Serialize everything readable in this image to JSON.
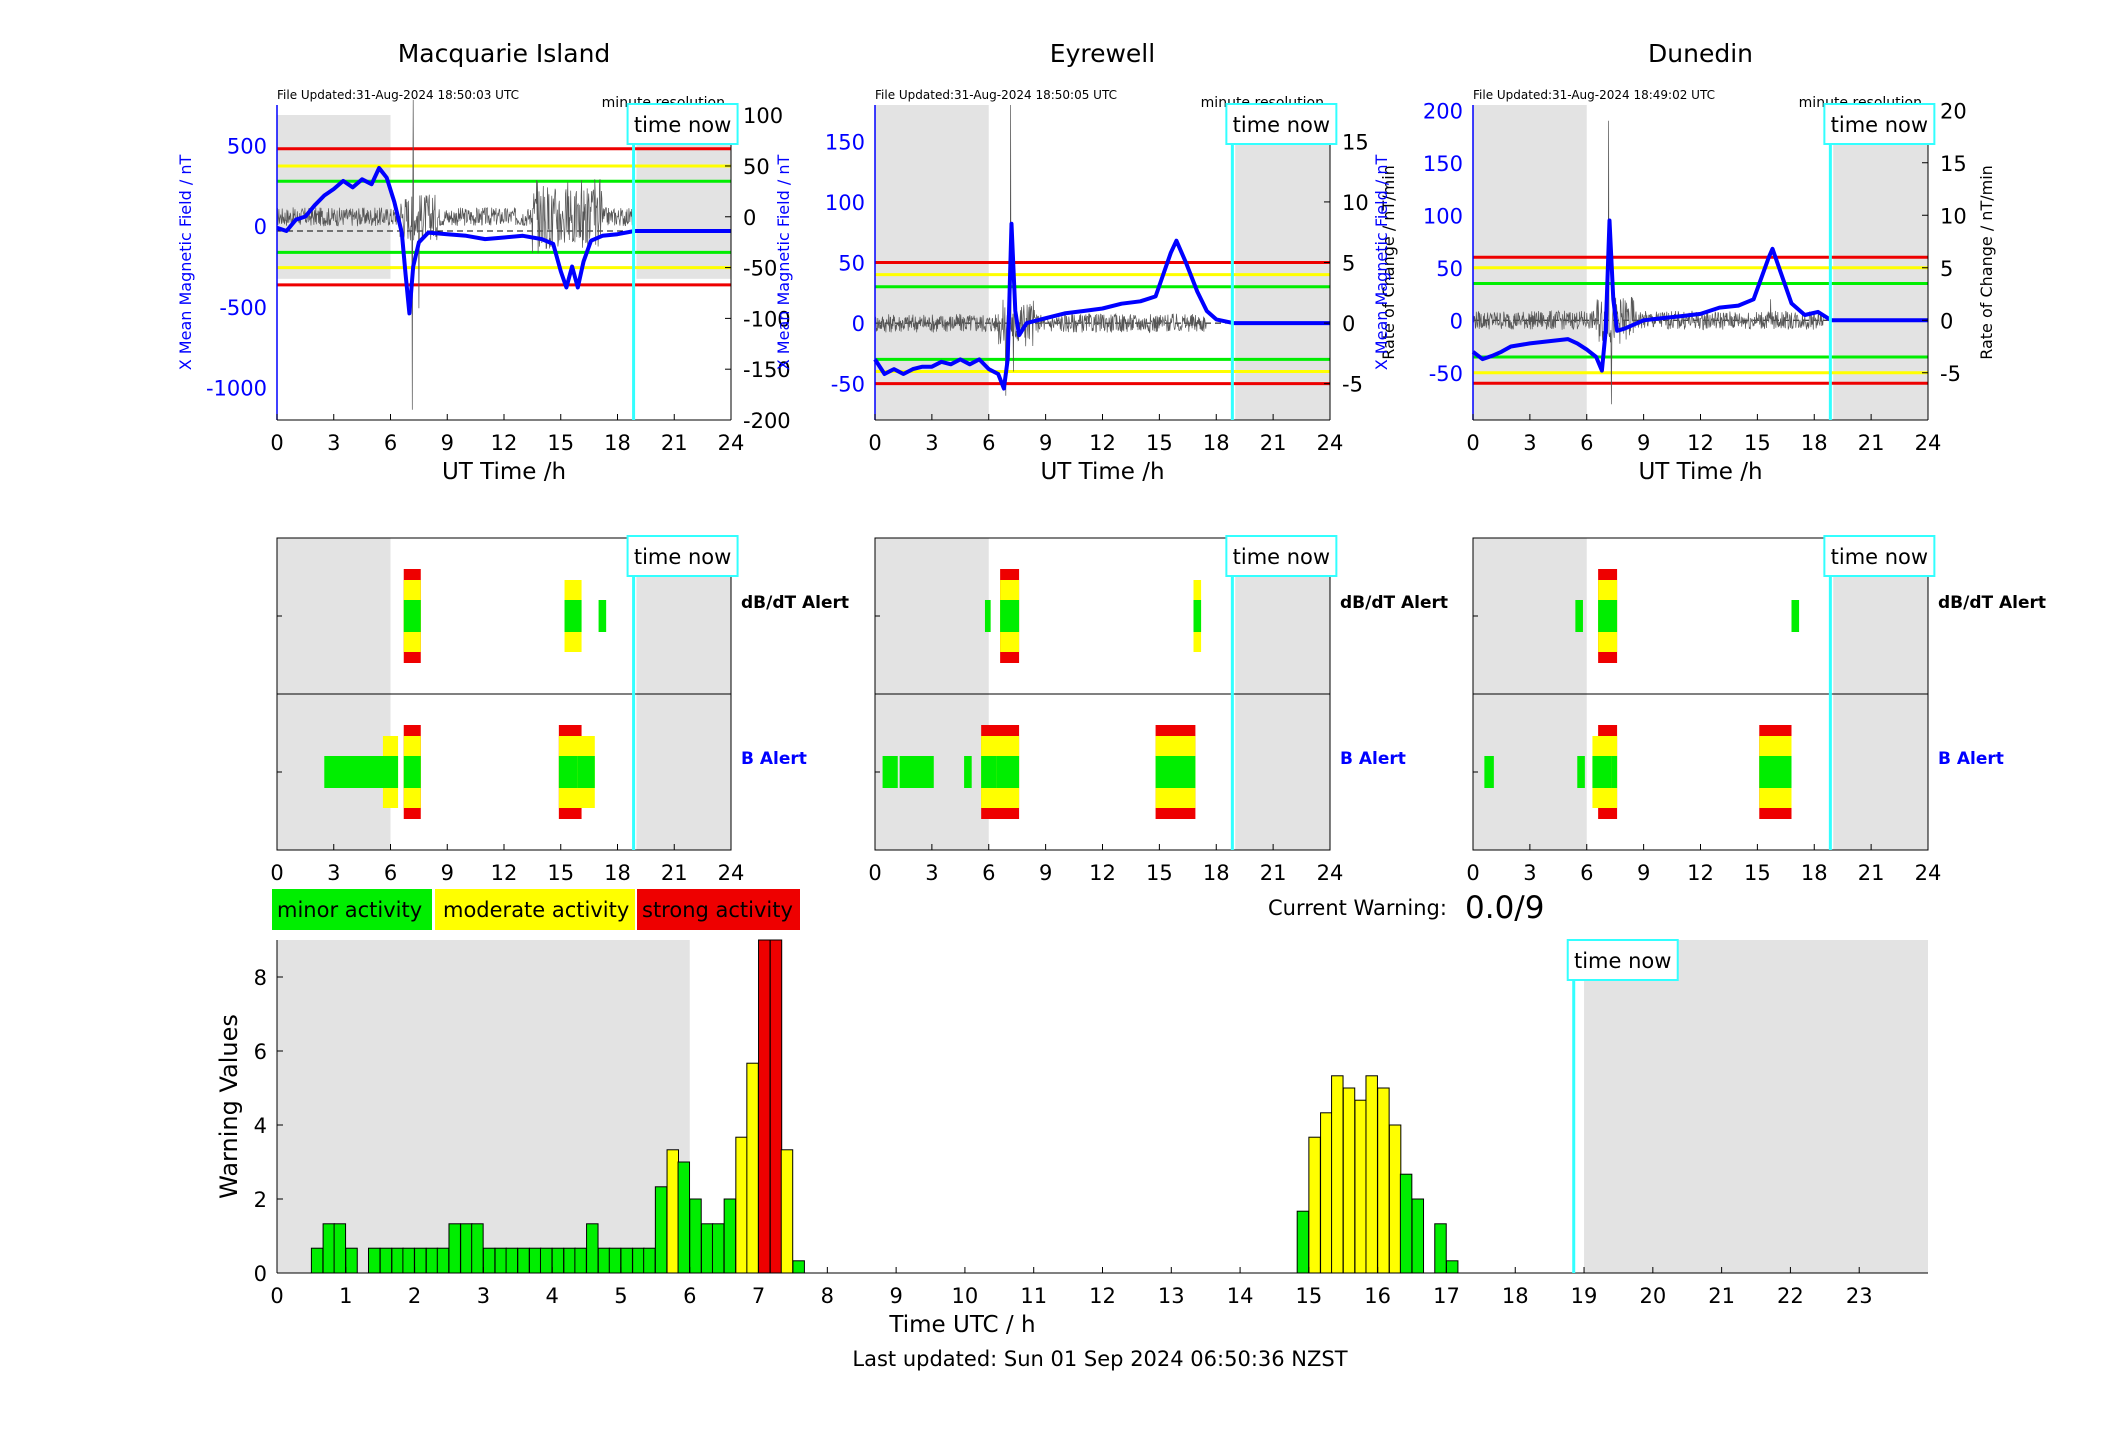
{
  "time_now_label": "time now",
  "time_now_hour": 18.85,
  "night_shading": {
    "hours": [
      [
        0,
        6
      ],
      [
        19,
        24
      ]
    ],
    "color": "#e3e3e3"
  },
  "colors": {
    "minor": "#00ee00",
    "moderate": "#ffff00",
    "strong": "#ee0000",
    "blue": "#0000ff",
    "cyan": "#33ffff"
  },
  "last_updated": "Last updated: Sun 01 Sep 2024 06:50:36 NZST",
  "legend": {
    "minor": "minor activity",
    "moderate": "moderate activity",
    "strong": "strong activity"
  },
  "current_warning": {
    "label": "Current Warning:",
    "value": "0.0/9"
  },
  "alert_labels": {
    "dbdt": "dB/dT Alert",
    "b": "B Alert"
  },
  "chart_data": [
    {
      "type": "line",
      "title": "Macquarie Island",
      "file_updated": "File Updated:31-Aug-2024 18:50:03 UTC",
      "resolution": "minute resolution",
      "xlabel": "UT Time /h",
      "ylabel_left": "X Mean Magnetic Field / nT",
      "ylabel_right": "",
      "xlim": [
        0,
        24
      ],
      "xticks": [
        0,
        3,
        6,
        9,
        12,
        15,
        18,
        21,
        24
      ],
      "ylim_left": [
        -1200,
        750
      ],
      "yticks_left": [
        500,
        0,
        -500,
        -1000
      ],
      "ylim_right": [
        -200,
        110
      ],
      "yticks_right": [
        100,
        50,
        0,
        -50,
        -100,
        -150,
        -200
      ],
      "thresholds_right": {
        "minor": 35,
        "moderate": 50,
        "strong": 67
      },
      "field_series": [
        [
          0,
          -10
        ],
        [
          0.5,
          -30
        ],
        [
          1,
          40
        ],
        [
          1.5,
          60
        ],
        [
          2,
          130
        ],
        [
          2.5,
          190
        ],
        [
          3,
          230
        ],
        [
          3.5,
          280
        ],
        [
          4,
          240
        ],
        [
          4.5,
          290
        ],
        [
          5,
          260
        ],
        [
          5.4,
          360
        ],
        [
          5.8,
          300
        ],
        [
          6.2,
          150
        ],
        [
          6.6,
          -40
        ],
        [
          6.8,
          -300
        ],
        [
          7.0,
          -540
        ],
        [
          7.2,
          -250
        ],
        [
          7.5,
          -100
        ],
        [
          8,
          -40
        ],
        [
          9,
          -50
        ],
        [
          10,
          -60
        ],
        [
          11,
          -80
        ],
        [
          12,
          -70
        ],
        [
          13,
          -60
        ],
        [
          14,
          -80
        ],
        [
          14.6,
          -110
        ],
        [
          15,
          -280
        ],
        [
          15.3,
          -380
        ],
        [
          15.6,
          -250
        ],
        [
          15.9,
          -380
        ],
        [
          16.2,
          -220
        ],
        [
          16.6,
          -90
        ],
        [
          17.2,
          -60
        ],
        [
          18,
          -50
        ],
        [
          18.9,
          -30
        ],
        [
          24,
          -30
        ]
      ],
      "field_baseline": -30,
      "rate_noise_until": 18.85,
      "rate_spikes": [
        [
          7.2,
          115
        ],
        [
          7.15,
          -190
        ],
        [
          7.5,
          -90
        ],
        [
          15.3,
          -20
        ]
      ]
    },
    {
      "type": "line",
      "title": "Eyrewell",
      "file_updated": "File Updated:31-Aug-2024 18:50:05 UTC",
      "resolution": "minute resolution",
      "xlabel": "UT Time /h",
      "ylabel_left": "X Mean Magnetic Field / nT",
      "ylabel_right": "Rate of Change / nT/min",
      "xlim": [
        0,
        24
      ],
      "xticks": [
        0,
        3,
        6,
        9,
        12,
        15,
        18,
        21,
        24
      ],
      "ylim_left": [
        -80,
        180
      ],
      "yticks_left": [
        150,
        100,
        50,
        0,
        -50
      ],
      "ylim_right": [
        -8,
        18
      ],
      "yticks_right": [
        15,
        10,
        5,
        0,
        -5
      ],
      "thresholds_right": {
        "minor": 3,
        "moderate": 4,
        "strong": 5
      },
      "field_series": [
        [
          0,
          -30
        ],
        [
          0.5,
          -42
        ],
        [
          1,
          -38
        ],
        [
          1.5,
          -42
        ],
        [
          2,
          -38
        ],
        [
          2.5,
          -36
        ],
        [
          3,
          -36
        ],
        [
          3.5,
          -32
        ],
        [
          4,
          -34
        ],
        [
          4.5,
          -30
        ],
        [
          5,
          -34
        ],
        [
          5.5,
          -30
        ],
        [
          6,
          -38
        ],
        [
          6.5,
          -42
        ],
        [
          6.8,
          -54
        ],
        [
          7.0,
          -30
        ],
        [
          7.2,
          82
        ],
        [
          7.4,
          10
        ],
        [
          7.6,
          -10
        ],
        [
          8,
          0
        ],
        [
          9,
          4
        ],
        [
          10,
          8
        ],
        [
          11,
          10
        ],
        [
          12,
          12
        ],
        [
          13,
          16
        ],
        [
          14,
          18
        ],
        [
          14.8,
          22
        ],
        [
          15.2,
          40
        ],
        [
          15.6,
          58
        ],
        [
          15.9,
          68
        ],
        [
          16.4,
          50
        ],
        [
          17,
          26
        ],
        [
          17.5,
          10
        ],
        [
          18,
          3
        ],
        [
          18.9,
          0
        ],
        [
          24,
          0
        ]
      ],
      "field_baseline": 0,
      "rate_noise_until": 17.5,
      "rate_spikes": [
        [
          7.15,
          18
        ],
        [
          6.9,
          -6
        ],
        [
          7.3,
          -4
        ]
      ]
    },
    {
      "type": "line",
      "title": "Dunedin",
      "file_updated": "File Updated:31-Aug-2024 18:49:02 UTC",
      "resolution": "minute resolution",
      "xlabel": "UT Time /h",
      "ylabel_left": "X Mean Magnetic Field / nT",
      "ylabel_right": "Rate of Change / nT/min",
      "xlim": [
        0,
        24
      ],
      "xticks": [
        0,
        3,
        6,
        9,
        12,
        15,
        18,
        21,
        24
      ],
      "ylim_left": [
        -95,
        205
      ],
      "yticks_left": [
        200,
        150,
        100,
        50,
        0,
        -50
      ],
      "ylim_right": [
        -9.5,
        20.5
      ],
      "yticks_right": [
        20,
        15,
        10,
        5,
        0,
        -5
      ],
      "thresholds_right": {
        "minor": 3.5,
        "moderate": 5,
        "strong": 6
      },
      "field_series": [
        [
          0,
          -30
        ],
        [
          0.5,
          -37
        ],
        [
          1,
          -34
        ],
        [
          1.5,
          -30
        ],
        [
          2,
          -25
        ],
        [
          3,
          -22
        ],
        [
          4,
          -20
        ],
        [
          5,
          -18
        ],
        [
          5.5,
          -22
        ],
        [
          6,
          -28
        ],
        [
          6.5,
          -35
        ],
        [
          6.8,
          -48
        ],
        [
          7.0,
          -10
        ],
        [
          7.2,
          95
        ],
        [
          7.4,
          20
        ],
        [
          7.6,
          -10
        ],
        [
          8,
          -8
        ],
        [
          9,
          0
        ],
        [
          10,
          2
        ],
        [
          11,
          4
        ],
        [
          12,
          6
        ],
        [
          13,
          12
        ],
        [
          14,
          14
        ],
        [
          14.8,
          20
        ],
        [
          15.2,
          40
        ],
        [
          15.6,
          60
        ],
        [
          15.8,
          68
        ],
        [
          16.3,
          42
        ],
        [
          16.8,
          16
        ],
        [
          17.5,
          5
        ],
        [
          18.2,
          8
        ],
        [
          18.9,
          0
        ],
        [
          24,
          0
        ]
      ],
      "field_baseline": 0,
      "rate_noise_until": 18.5,
      "rate_spikes": [
        [
          7.15,
          19
        ],
        [
          7.3,
          -8
        ],
        [
          15.7,
          2
        ]
      ]
    },
    {
      "type": "alert_strip",
      "station": "Macquarie Island",
      "xlim": [
        0,
        24
      ],
      "xticks": [
        0,
        3,
        6,
        9,
        12,
        15,
        18,
        21,
        24
      ],
      "dbdt": [
        [
          6.7,
          7.6,
          "strong"
        ],
        [
          15.2,
          16.1,
          "moderate"
        ],
        [
          17.0,
          17.4,
          "minor"
        ]
      ],
      "b": [
        [
          2.5,
          6.1,
          "minor"
        ],
        [
          5.6,
          6.4,
          "moderate"
        ],
        [
          6.7,
          7.6,
          "strong"
        ],
        [
          14.9,
          16.1,
          "strong"
        ],
        [
          15.9,
          16.8,
          "moderate"
        ]
      ]
    },
    {
      "type": "alert_strip",
      "station": "Eyrewell",
      "xlim": [
        0,
        24
      ],
      "xticks": [
        0,
        3,
        6,
        9,
        12,
        15,
        18,
        21,
        24
      ],
      "dbdt": [
        [
          5.8,
          6.1,
          "minor"
        ],
        [
          6.6,
          7.6,
          "strong"
        ],
        [
          16.8,
          17.2,
          "moderate"
        ]
      ],
      "b": [
        [
          0.4,
          1.2,
          "minor"
        ],
        [
          1.3,
          3.1,
          "minor"
        ],
        [
          4.7,
          5.1,
          "minor"
        ],
        [
          5.6,
          6.4,
          "moderate"
        ],
        [
          5.6,
          7.6,
          "strong"
        ],
        [
          14.8,
          16.9,
          "strong"
        ]
      ]
    },
    {
      "type": "alert_strip",
      "station": "Dunedin",
      "xlim": [
        0,
        24
      ],
      "xticks": [
        0,
        3,
        6,
        9,
        12,
        15,
        18,
        21,
        24
      ],
      "dbdt": [
        [
          5.4,
          5.8,
          "minor"
        ],
        [
          6.6,
          7.6,
          "strong"
        ],
        [
          16.8,
          17.2,
          "minor"
        ]
      ],
      "b": [
        [
          0.6,
          1.1,
          "minor"
        ],
        [
          5.5,
          5.9,
          "minor"
        ],
        [
          6.3,
          7.3,
          "moderate"
        ],
        [
          6.6,
          7.6,
          "strong"
        ],
        [
          15.1,
          16.8,
          "strong"
        ]
      ]
    },
    {
      "type": "bar",
      "xlabel": "Time UTC / h",
      "ylabel": "Warning Values",
      "xlim": [
        0,
        24
      ],
      "xticks": [
        0,
        1,
        2,
        3,
        4,
        5,
        6,
        7,
        8,
        9,
        10,
        11,
        12,
        13,
        14,
        15,
        16,
        17,
        18,
        19,
        20,
        21,
        22,
        23
      ],
      "ylim": [
        0,
        9
      ],
      "yticks": [
        0,
        2,
        4,
        6,
        8
      ],
      "bin_hours": 0.1667,
      "bars": [
        [
          0.5,
          0.67
        ],
        [
          0.67,
          1.33
        ],
        [
          0.83,
          1.33
        ],
        [
          1.0,
          0.67
        ],
        [
          1.33,
          0.67
        ],
        [
          1.5,
          0.67
        ],
        [
          1.67,
          0.67
        ],
        [
          1.83,
          0.67
        ],
        [
          2.0,
          0.67
        ],
        [
          2.17,
          0.67
        ],
        [
          2.33,
          0.67
        ],
        [
          2.5,
          1.33
        ],
        [
          2.67,
          1.33
        ],
        [
          2.83,
          1.33
        ],
        [
          3.0,
          0.67
        ],
        [
          3.17,
          0.67
        ],
        [
          3.33,
          0.67
        ],
        [
          3.5,
          0.67
        ],
        [
          3.67,
          0.67
        ],
        [
          3.83,
          0.67
        ],
        [
          4.0,
          0.67
        ],
        [
          4.17,
          0.67
        ],
        [
          4.33,
          0.67
        ],
        [
          4.5,
          1.33
        ],
        [
          4.67,
          0.67
        ],
        [
          4.83,
          0.67
        ],
        [
          5.0,
          0.67
        ],
        [
          5.17,
          0.67
        ],
        [
          5.33,
          0.67
        ],
        [
          5.5,
          2.33
        ],
        [
          5.67,
          3.33
        ],
        [
          5.83,
          3.0
        ],
        [
          6.0,
          2.0
        ],
        [
          6.17,
          1.33
        ],
        [
          6.33,
          1.33
        ],
        [
          6.5,
          2.0
        ],
        [
          6.67,
          3.67
        ],
        [
          6.83,
          5.67
        ],
        [
          7.0,
          9.0
        ],
        [
          7.17,
          9.0
        ],
        [
          7.33,
          3.33
        ],
        [
          7.5,
          0.33
        ],
        [
          14.83,
          1.67
        ],
        [
          15.0,
          3.67
        ],
        [
          15.17,
          4.33
        ],
        [
          15.33,
          5.33
        ],
        [
          15.5,
          5.0
        ],
        [
          15.67,
          4.67
        ],
        [
          15.83,
          5.33
        ],
        [
          16.0,
          5.0
        ],
        [
          16.17,
          4.0
        ],
        [
          16.33,
          2.67
        ],
        [
          16.5,
          2.0
        ],
        [
          16.83,
          1.33
        ],
        [
          17.0,
          0.33
        ]
      ],
      "thresholds": {
        "moderate": 3.3,
        "strong": 6.7
      }
    }
  ]
}
